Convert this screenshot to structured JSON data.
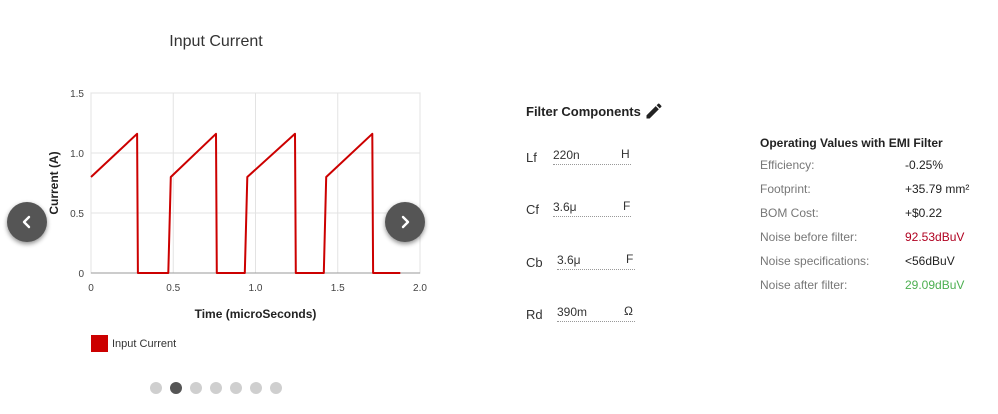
{
  "chart_data": {
    "type": "line",
    "title": "Input Current",
    "xlabel": "Time (microSeconds)",
    "ylabel": "Current (A)",
    "xlim": [
      0,
      2.0
    ],
    "ylim": [
      0,
      1.5
    ],
    "xticks": [
      "0",
      "0.5",
      "1.0",
      "1.5",
      "2.0"
    ],
    "yticks": [
      "0",
      "0.5",
      "1.0",
      "1.5"
    ],
    "grid": true,
    "legend": "bottom-left",
    "series": [
      {
        "name": "Input Current",
        "color": "#cc0000",
        "x": [
          0,
          0.28,
          0.285,
          0.3,
          0.47,
          0.485,
          0.76,
          0.765,
          0.78,
          0.935,
          0.95,
          1.24,
          1.245,
          1.26,
          1.415,
          1.43,
          1.71,
          1.715,
          1.73,
          1.88
        ],
        "y": [
          0.8,
          1.16,
          0.0,
          0.0,
          0.0,
          0.8,
          1.16,
          0.0,
          0.0,
          0.0,
          0.8,
          1.16,
          0.0,
          0.0,
          0.0,
          0.8,
          1.16,
          0.0,
          0.0,
          0.0
        ]
      }
    ]
  },
  "carousel": {
    "dots": 7,
    "active": 1,
    "prev_icon": "chevron-left-icon",
    "next_icon": "chevron-right-icon"
  },
  "filter": {
    "title": "Filter Components",
    "edit_icon": "pencil-icon",
    "components": [
      {
        "name": "Lf",
        "value": "220n",
        "unit": "H"
      },
      {
        "name": "Cf",
        "value": "3.6μ",
        "unit": "F"
      },
      {
        "name": "Cb",
        "value": "3.6μ",
        "unit": "F"
      },
      {
        "name": "Rd",
        "value": "390m",
        "unit": "Ω"
      }
    ]
  },
  "operating": {
    "title": "Operating Values with EMI Filter",
    "rows": [
      {
        "label": "Efficiency:",
        "value": "-0.25%",
        "color": "#222222"
      },
      {
        "label": "Footprint:",
        "value": "+35.79 mm²",
        "color": "#222222"
      },
      {
        "label": "BOM Cost:",
        "value": "+$0.22",
        "color": "#222222"
      },
      {
        "label": "Noise before filter:",
        "value": "92.53dBuV",
        "color": "#b00020"
      },
      {
        "label": "Noise specifications:",
        "value": "<56dBuV",
        "color": "#222222"
      },
      {
        "label": "Noise after filter:",
        "value": "29.09dBuV",
        "color": "#4caf50"
      }
    ]
  }
}
